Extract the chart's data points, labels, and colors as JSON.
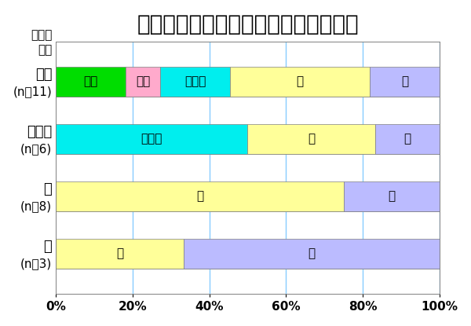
{
  "title": "初診時からの血糖コントロール改善度",
  "subtitle_line1": "初診時",
  "subtitle_line2": "評価",
  "cat_names": [
    "不可",
    "不十分",
    "良",
    "優"
  ],
  "cat_ns": [
    "(n：11)",
    "(n：6)",
    "(n：8)",
    "(n：3)"
  ],
  "data": [
    [
      0.1818,
      0.0909,
      0.1818,
      0.3637,
      0.1818
    ],
    [
      0.0,
      0.0,
      0.5,
      0.3333,
      0.1667
    ],
    [
      0.0,
      0.0,
      0.0,
      0.75,
      0.25
    ],
    [
      0.0,
      0.0,
      0.0,
      0.3333,
      0.6667
    ]
  ],
  "segment_labels": [
    "不可",
    "不良",
    "不十分",
    "良",
    "優"
  ],
  "colors": [
    "#00dd00",
    "#ffaacc",
    "#00eeee",
    "#ffff99",
    "#bbbbff"
  ],
  "bar_height": 0.52,
  "background_color": "#ffffff",
  "grid_color": "#88ccff",
  "title_fontsize": 20,
  "cat_name_fontsize": 13,
  "cat_n_fontsize": 11,
  "bar_label_fontsize": 11,
  "axis_tick_fontsize": 11,
  "subtitle_fontsize": 11
}
